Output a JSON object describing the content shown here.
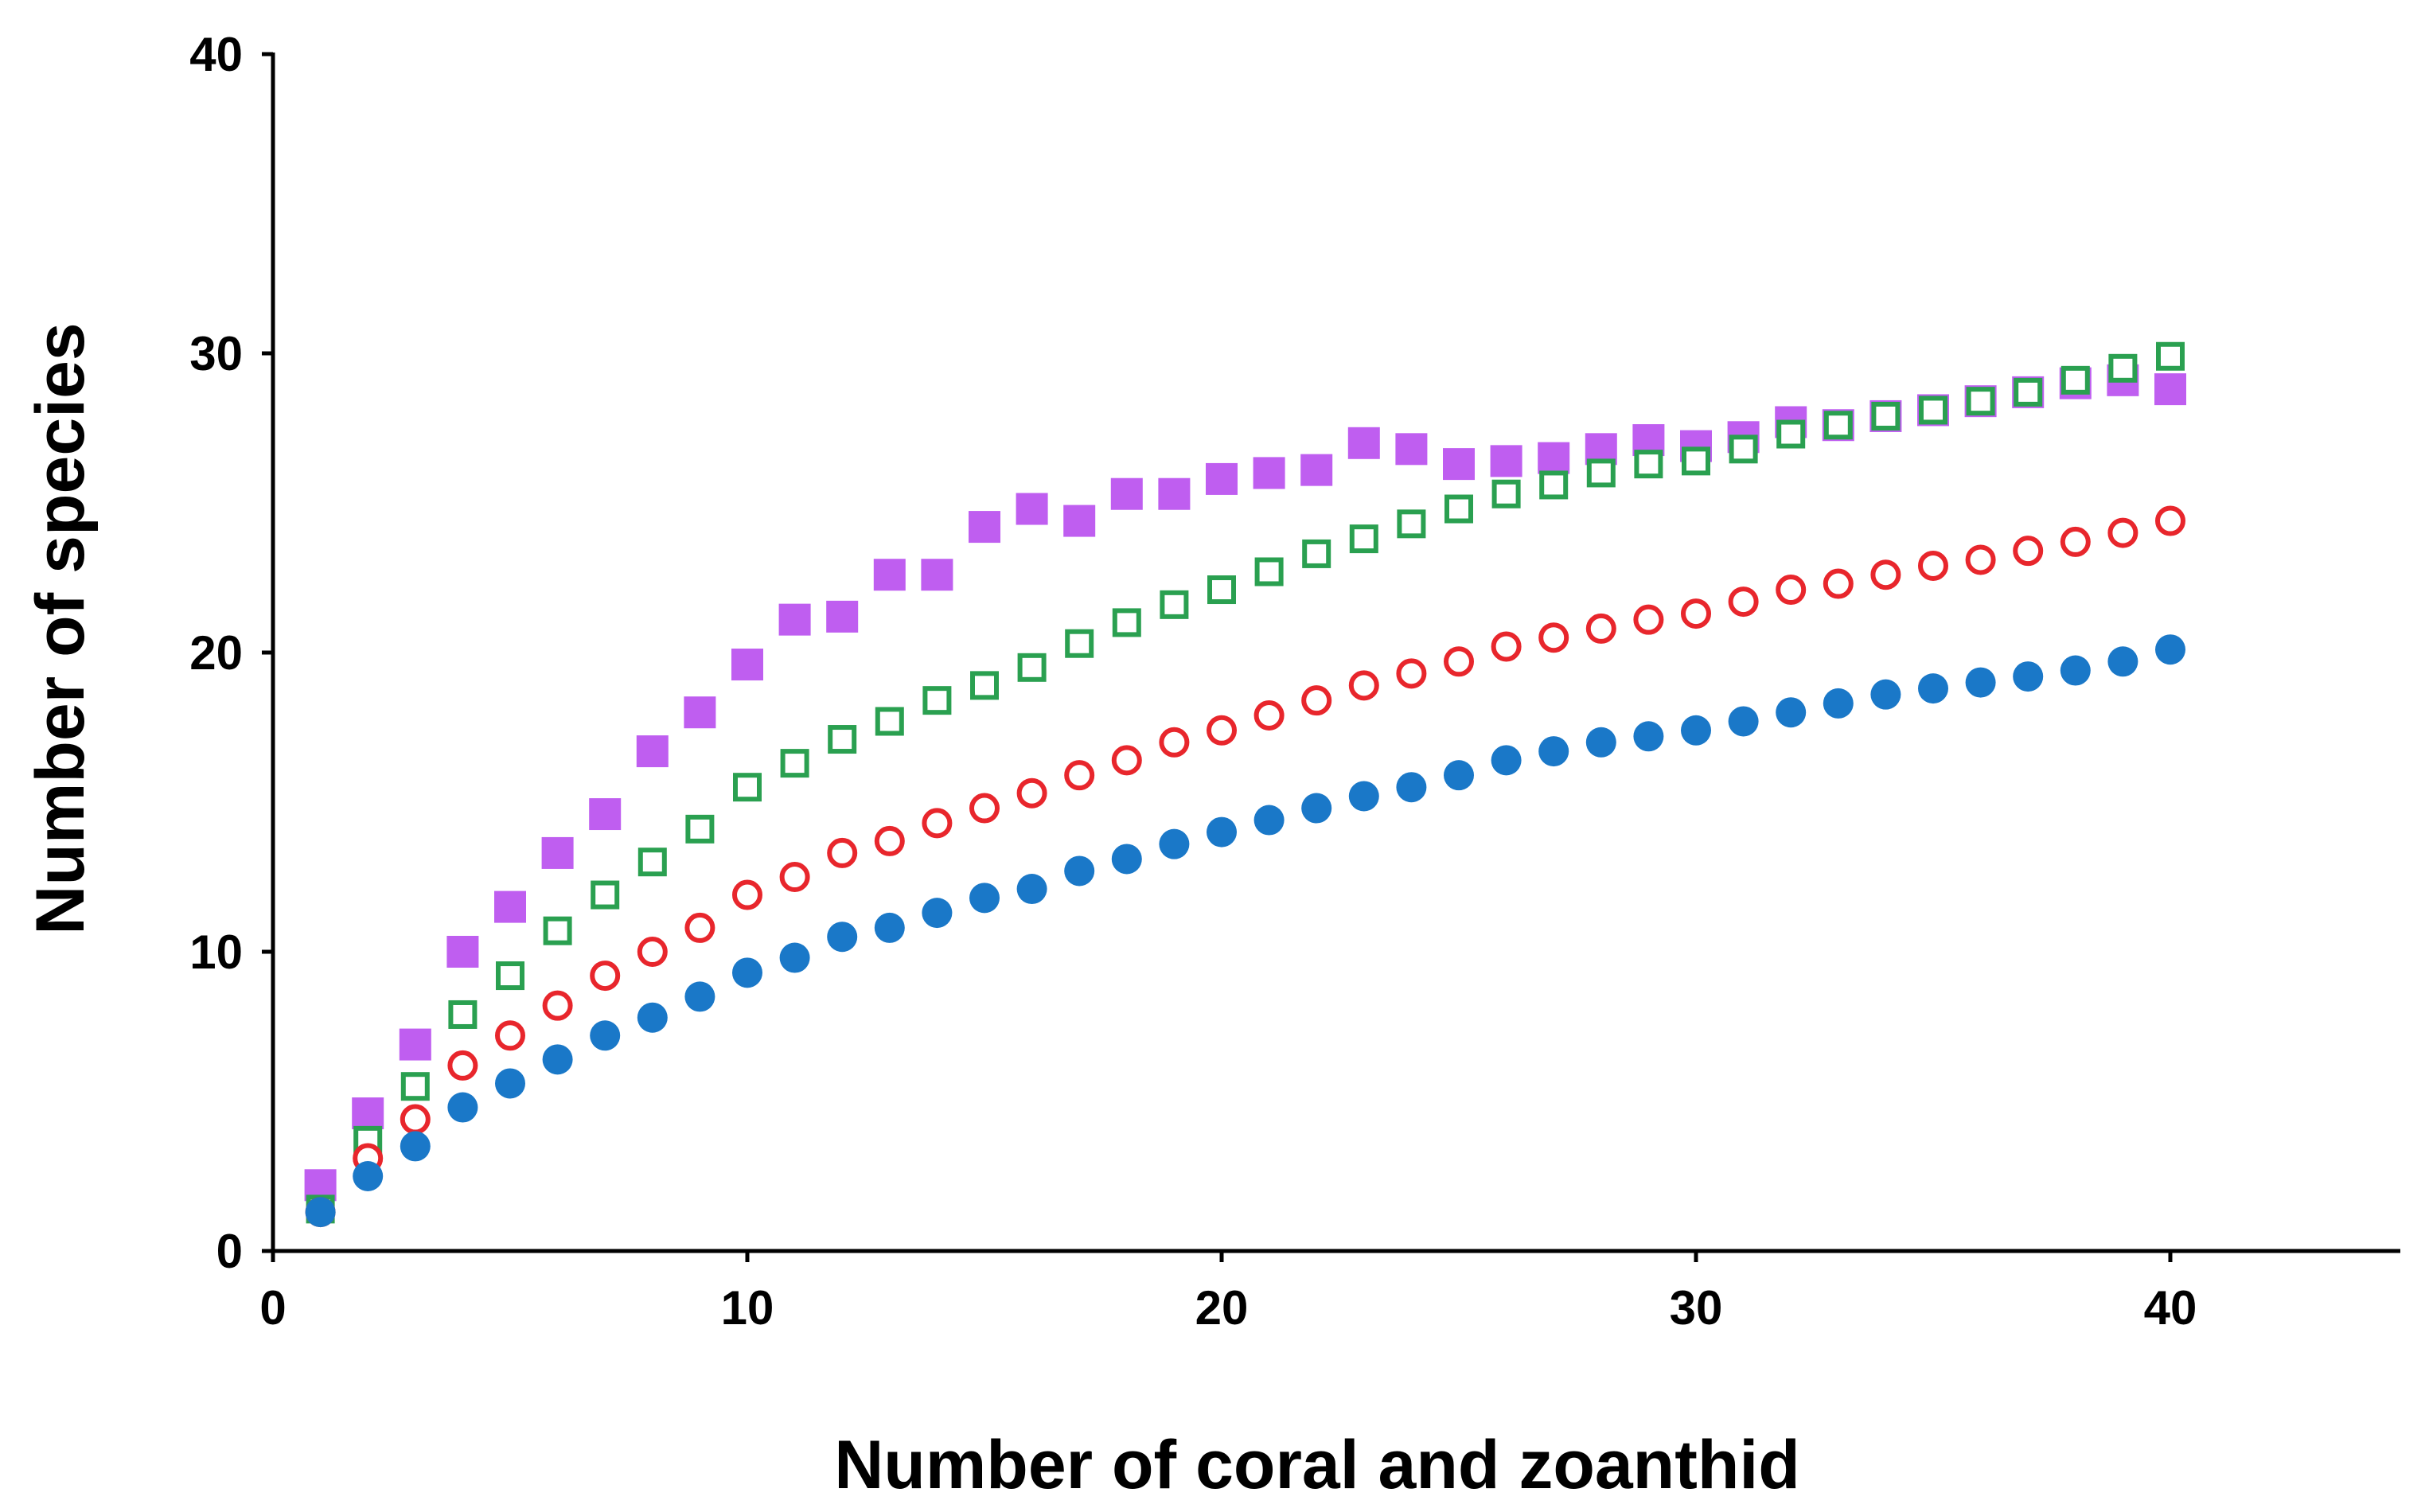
{
  "chart_data": {
    "type": "scatter",
    "title": "",
    "xlabel": "Number of coral and zoanthid",
    "ylabel": "Number of species",
    "xlim": [
      0,
      45
    ],
    "ylim": [
      0,
      40
    ],
    "xticks": [
      0,
      10,
      20,
      30,
      40
    ],
    "yticks": [
      0,
      10,
      20,
      30,
      40
    ],
    "grid": false,
    "legend": "none",
    "x": [
      1,
      2,
      3,
      4,
      5,
      6,
      7,
      8,
      9,
      10,
      11,
      12,
      13,
      14,
      15,
      16,
      17,
      18,
      19,
      20,
      21,
      22,
      23,
      24,
      25,
      26,
      27,
      28,
      29,
      30,
      31,
      32,
      33,
      34,
      35,
      36,
      37,
      38,
      39,
      40
    ],
    "series": [
      {
        "name": "purple filled squares",
        "marker": "square",
        "filled": true,
        "color": "#bf5ef0",
        "values": [
          2.2,
          4.6,
          6.9,
          10.0,
          11.5,
          13.3,
          14.6,
          16.7,
          18.0,
          19.6,
          21.1,
          21.2,
          22.6,
          22.6,
          24.2,
          24.8,
          24.4,
          25.3,
          25.3,
          25.8,
          26.0,
          26.1,
          27.0,
          26.8,
          26.3,
          26.4,
          26.5,
          26.8,
          27.1,
          26.9,
          27.2,
          27.7,
          27.6,
          27.9,
          28.1,
          28.4,
          28.7,
          29.0,
          29.1,
          28.8
        ]
      },
      {
        "name": "green open squares",
        "marker": "square",
        "filled": false,
        "color": "#2aa050",
        "values": [
          1.4,
          3.7,
          5.5,
          7.9,
          9.2,
          10.7,
          11.9,
          13.0,
          14.1,
          15.5,
          16.3,
          17.1,
          17.7,
          18.4,
          18.9,
          19.5,
          20.3,
          21.0,
          21.6,
          22.1,
          22.7,
          23.3,
          23.8,
          24.3,
          24.8,
          25.3,
          25.6,
          26.0,
          26.3,
          26.4,
          26.8,
          27.3,
          27.6,
          27.9,
          28.1,
          28.4,
          28.7,
          29.1,
          29.5,
          29.9
        ]
      },
      {
        "name": "red open circles",
        "marker": "circle",
        "filled": false,
        "color": "#e8262c",
        "values": [
          1.3,
          3.1,
          4.4,
          6.2,
          7.2,
          8.2,
          9.2,
          10.0,
          10.8,
          11.9,
          12.5,
          13.3,
          13.7,
          14.3,
          14.8,
          15.3,
          15.9,
          16.4,
          17.0,
          17.4,
          17.9,
          18.4,
          18.9,
          19.3,
          19.7,
          20.2,
          20.5,
          20.8,
          21.1,
          21.3,
          21.7,
          22.1,
          22.3,
          22.6,
          22.9,
          23.1,
          23.4,
          23.7,
          24.0,
          24.4
        ]
      },
      {
        "name": "blue filled circles",
        "marker": "circle",
        "filled": true,
        "color": "#1a78c8",
        "values": [
          1.3,
          2.5,
          3.5,
          4.8,
          5.6,
          6.4,
          7.2,
          7.8,
          8.5,
          9.3,
          9.8,
          10.5,
          10.8,
          11.3,
          11.8,
          12.1,
          12.7,
          13.1,
          13.6,
          14.0,
          14.4,
          14.8,
          15.2,
          15.5,
          15.9,
          16.4,
          16.7,
          17.0,
          17.2,
          17.4,
          17.7,
          18.0,
          18.3,
          18.6,
          18.8,
          19.0,
          19.2,
          19.4,
          19.7,
          20.1
        ]
      }
    ]
  }
}
